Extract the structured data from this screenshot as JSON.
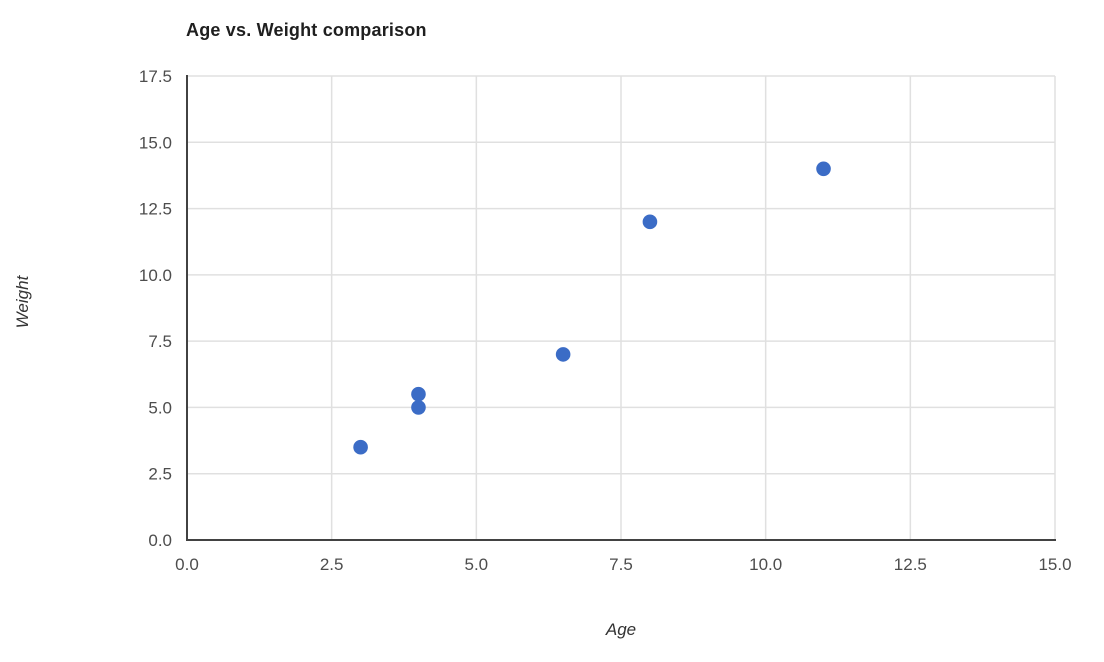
{
  "chart_data": {
    "type": "scatter",
    "title": "Age vs. Weight comparison",
    "xlabel": "Age",
    "ylabel": "Weight",
    "series": [
      {
        "name": "Weight",
        "points": [
          {
            "x": 3,
            "y": 3.5
          },
          {
            "x": 4,
            "y": 5
          },
          {
            "x": 4,
            "y": 5.5
          },
          {
            "x": 6.5,
            "y": 7
          },
          {
            "x": 8,
            "y": 12
          },
          {
            "x": 11,
            "y": 14
          }
        ]
      }
    ],
    "xlim": [
      0,
      15
    ],
    "ylim": [
      0,
      17.5
    ],
    "x_ticks": [
      0,
      2.5,
      5,
      7.5,
      10,
      12.5,
      15
    ],
    "y_ticks": [
      0,
      2.5,
      5,
      7.5,
      10,
      12.5,
      15,
      17.5
    ],
    "tick_decimals": 1,
    "grid": true,
    "legend": "none",
    "colors": {
      "point": "#3b6cc6",
      "gridline": "#e0e0e0",
      "axis_line": "#424242",
      "tick_label": "#4d4d4d",
      "title": "#1f1f1f",
      "axis_title": "#333333"
    },
    "point_radius": 7.3
  }
}
